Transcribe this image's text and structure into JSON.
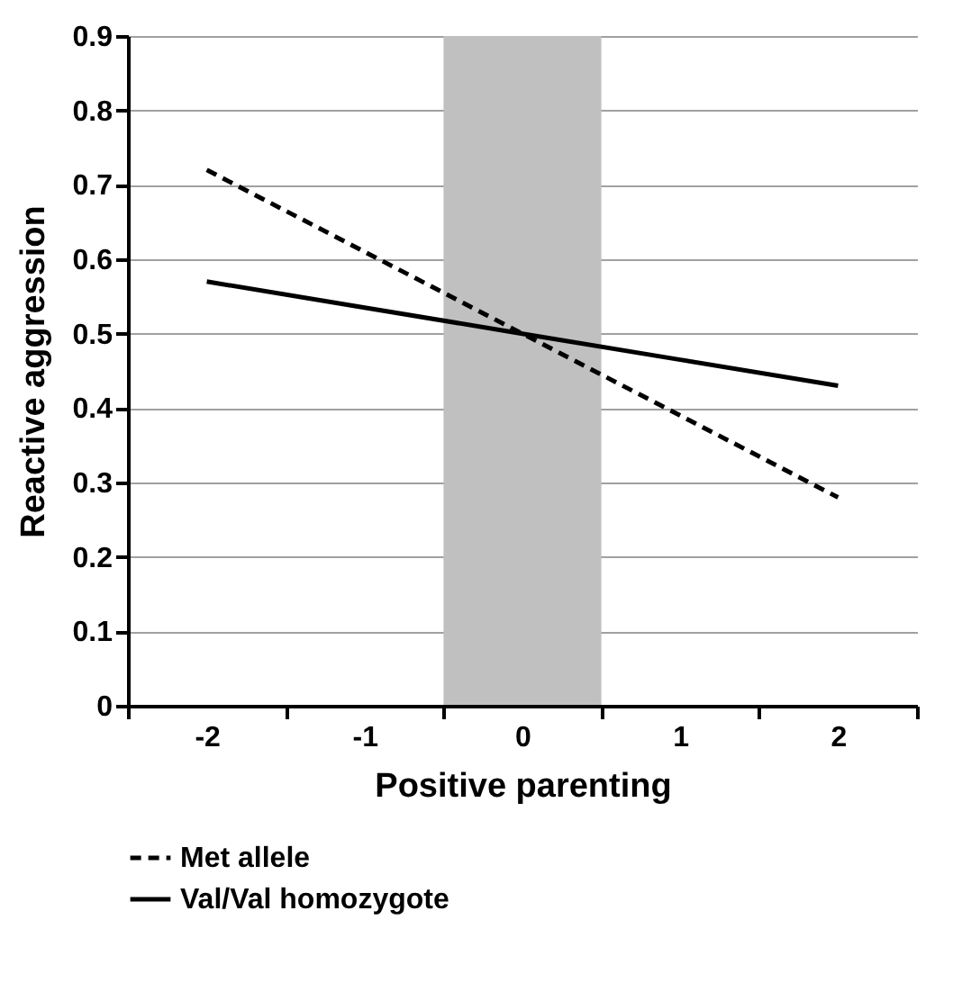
{
  "chart_data": {
    "type": "line",
    "xlabel": "Positive parenting",
    "ylabel": "Reactive aggression",
    "categories": [
      "-2",
      "-1",
      "0",
      "1",
      "2"
    ],
    "series": [
      {
        "name": "Met allele",
        "color": "#000000",
        "line_style": "dashed",
        "values": [
          0.72,
          0.61,
          0.5,
          0.39,
          0.28
        ]
      },
      {
        "name": "Val/Val homozygote",
        "color": "#000000",
        "line_style": "solid",
        "values": [
          0.57,
          0.535,
          0.5,
          0.465,
          0.43
        ]
      }
    ],
    "ylim": [
      0,
      0.9
    ],
    "yticks": [
      {
        "value": 0,
        "label": "0"
      },
      0.1,
      0.2,
      0.3,
      0.4,
      0.5,
      0.6,
      0.7,
      0.8,
      0.9
    ],
    "grid": "y",
    "legend": "bottom",
    "marker": "none",
    "bands": [
      {
        "axis": "x",
        "from": "0",
        "to": "0",
        "color": "#c0c0c0"
      }
    ]
  }
}
